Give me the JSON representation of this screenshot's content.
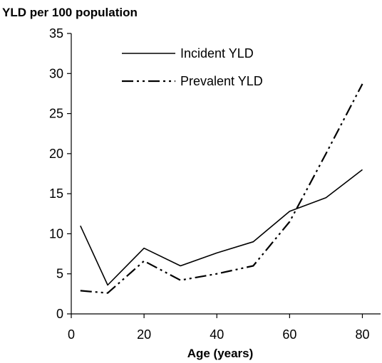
{
  "chart_data": {
    "type": "line",
    "title": "",
    "ylabel": "YLD per 100 population",
    "xlabel": "Age (years)",
    "xlim": [
      0,
      85
    ],
    "ylim": [
      0,
      35
    ],
    "xticks": [
      0,
      20,
      40,
      60,
      80
    ],
    "yticks": [
      0,
      5,
      10,
      15,
      20,
      25,
      30,
      35
    ],
    "grid": false,
    "legend_position": "top-center",
    "series": [
      {
        "name": "Incident YLD",
        "style": "solid",
        "color": "#000000",
        "x": [
          2.5,
          10,
          20,
          30,
          40,
          50,
          60,
          70,
          80
        ],
        "y": [
          11.0,
          3.6,
          8.2,
          6.0,
          7.6,
          9.0,
          12.8,
          14.5,
          18.0
        ]
      },
      {
        "name": "Prevalent YLD",
        "style": "dash-dot-dot",
        "color": "#000000",
        "x": [
          2.5,
          10,
          20,
          30,
          40,
          50,
          60,
          70,
          80
        ],
        "y": [
          2.9,
          2.6,
          6.6,
          4.2,
          5.0,
          6.0,
          11.5,
          20.0,
          28.7
        ]
      }
    ]
  }
}
